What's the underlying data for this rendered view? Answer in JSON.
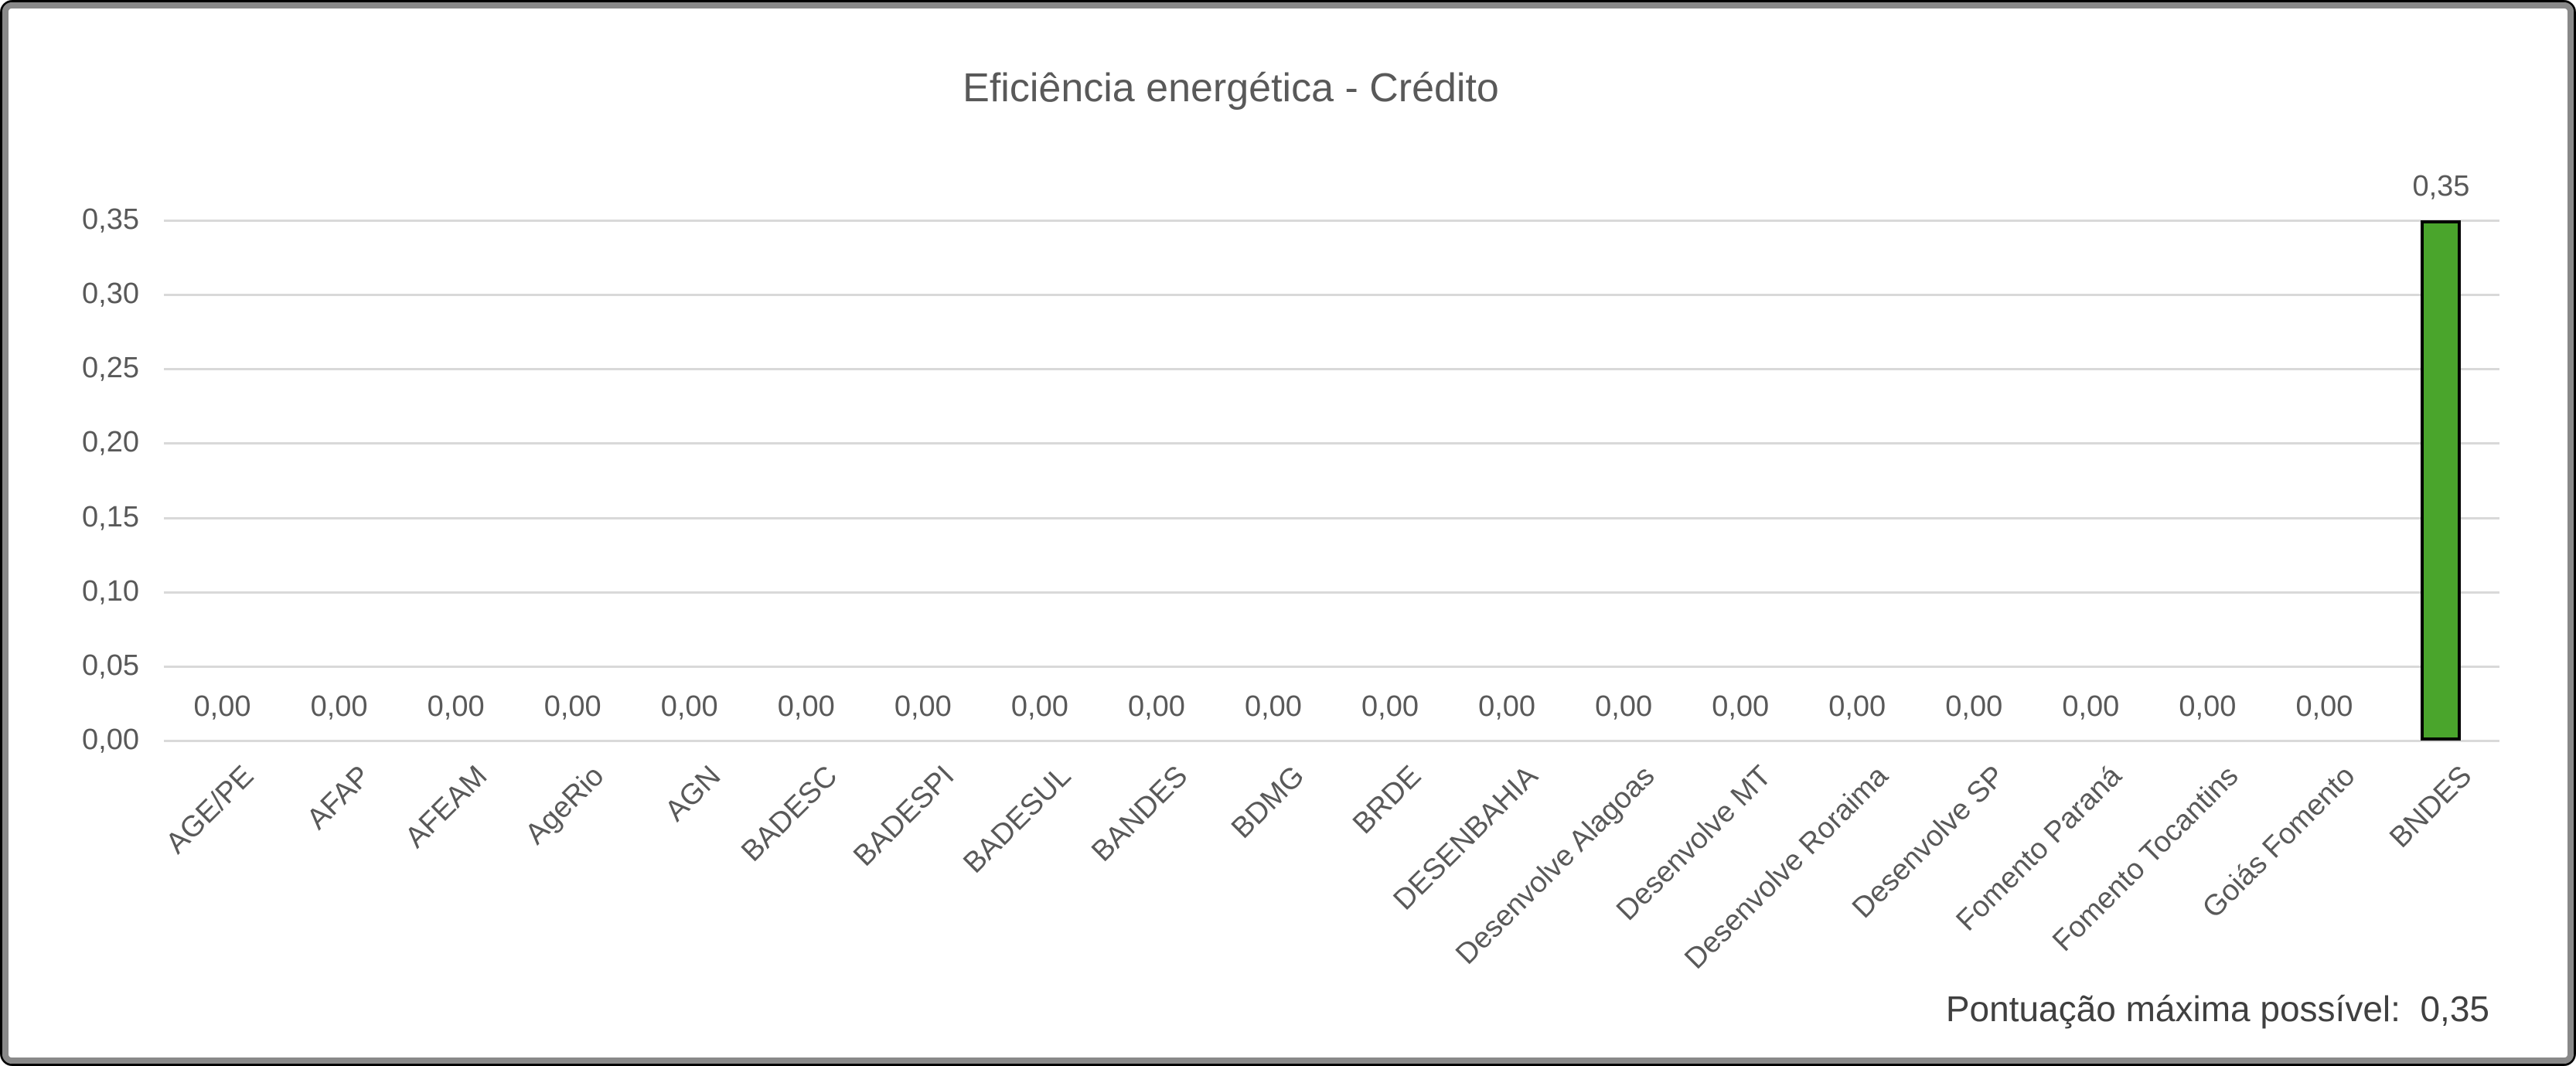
{
  "chart_data": {
    "type": "bar",
    "title": "Eficiência energética - Crédito",
    "categories": [
      "AGE/PE",
      "AFAP",
      "AFEAM",
      "AgeRio",
      "AGN",
      "BADESC",
      "BADESPI",
      "BADESUL",
      "BANDES",
      "BDMG",
      "BRDE",
      "DESENBAHIA",
      "Desenvolve Alagoas",
      "Desenvolve MT",
      "Desenvolve Roraima",
      "Desenvolve SP",
      "Fomento Paraná",
      "Fomento Tocantins",
      "Goiás Fomento",
      "BNDES"
    ],
    "values": [
      0,
      0,
      0,
      0,
      0,
      0,
      0,
      0,
      0,
      0,
      0,
      0,
      0,
      0,
      0,
      0,
      0,
      0,
      0,
      0.35
    ],
    "data_labels": [
      "0,00",
      "0,00",
      "0,00",
      "0,00",
      "0,00",
      "0,00",
      "0,00",
      "0,00",
      "0,00",
      "0,00",
      "0,00",
      "0,00",
      "0,00",
      "0,00",
      "0,00",
      "0,00",
      "0,00",
      "0,00",
      "0,00",
      "0,35"
    ],
    "y_ticks": [
      "0,00",
      "0,05",
      "0,10",
      "0,15",
      "0,20",
      "0,25",
      "0,30",
      "0,35"
    ],
    "ylim": [
      0,
      0.35
    ],
    "xlabel": "",
    "ylabel": "",
    "grid": true,
    "legend": false
  },
  "footer_note": "Pontuação máxima possível:  0,35",
  "colors": {
    "bar_fill": "#4AA52C",
    "bar_border": "#000000",
    "title_text": "#595959",
    "axis_text": "#595959",
    "note_text": "#404040",
    "gridline": "#D9D9D9",
    "frame_gray": "#898989",
    "frame_black": "#000000"
  }
}
